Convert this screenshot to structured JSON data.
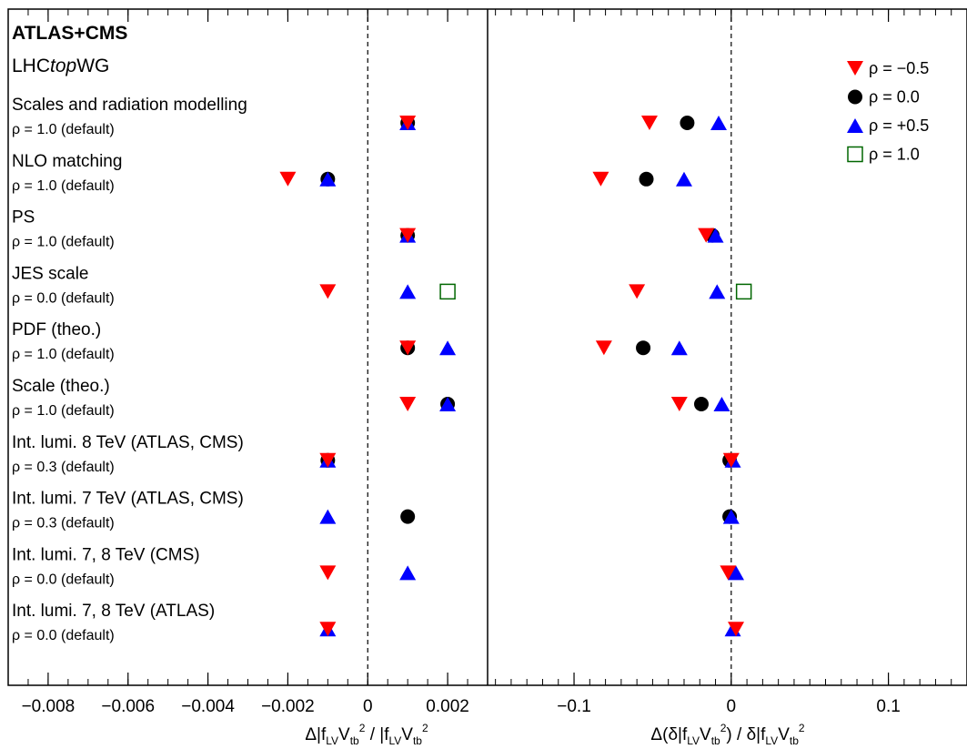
{
  "chart_data": {
    "type": "scatter",
    "title": "ATLAS+CMS",
    "subtitle_prefix": "LHC",
    "subtitle_italic": "top",
    "subtitle_suffix": "WG",
    "rows": [
      {
        "label": "Scales and radiation modelling",
        "rho_default": "ρ = 1.0 (default)"
      },
      {
        "label": "NLO matching",
        "rho_default": "ρ = 1.0 (default)"
      },
      {
        "label": "PS",
        "rho_default": "ρ = 1.0 (default)"
      },
      {
        "label": "JES scale",
        "rho_default": "ρ = 0.0 (default)"
      },
      {
        "label": "PDF (theo.)",
        "rho_default": "ρ = 1.0 (default)"
      },
      {
        "label": "Scale (theo.)",
        "rho_default": "ρ = 1.0 (default)"
      },
      {
        "label": "Int. lumi. 8 TeV (ATLAS, CMS)",
        "rho_default": "ρ = 0.3 (default)"
      },
      {
        "label": "Int. lumi. 7 TeV (ATLAS, CMS)",
        "rho_default": "ρ = 0.3 (default)"
      },
      {
        "label": "Int. lumi. 7, 8 TeV (CMS)",
        "rho_default": "ρ = 0.0 (default)"
      },
      {
        "label": "Int. lumi. 7, 8 TeV (ATLAS)",
        "rho_default": "ρ = 0.0 (default)"
      }
    ],
    "series": [
      {
        "name": "ρ = −0.5",
        "marker": "triangle-down",
        "color": "#ff0000",
        "left": [
          0.001,
          -0.002,
          0.001,
          -0.001,
          0.001,
          0.001,
          -0.001,
          null,
          -0.001,
          -0.001
        ],
        "right": [
          -0.052,
          -0.083,
          -0.016,
          -0.06,
          -0.081,
          -0.033,
          0.0,
          null,
          -0.002,
          0.003
        ]
      },
      {
        "name": "ρ = 0.0",
        "marker": "circle",
        "color": "#000000",
        "left": [
          0.001,
          -0.001,
          0.001,
          null,
          0.001,
          0.002,
          -0.001,
          0.001,
          null,
          null
        ],
        "right": [
          -0.028,
          -0.054,
          -0.012,
          null,
          -0.056,
          -0.019,
          -0.001,
          -0.001,
          null,
          null
        ]
      },
      {
        "name": "ρ = +0.5",
        "marker": "triangle-up",
        "color": "#0000ff",
        "left": [
          0.001,
          -0.001,
          0.001,
          0.001,
          0.002,
          0.002,
          -0.001,
          -0.001,
          0.001,
          -0.001
        ],
        "right": [
          -0.008,
          -0.03,
          -0.01,
          -0.009,
          -0.033,
          -0.006,
          0.001,
          0.0,
          0.003,
          0.001
        ]
      },
      {
        "name": "ρ = 1.0",
        "marker": "square-open",
        "color": "#006600",
        "left": [
          null,
          null,
          null,
          0.002,
          null,
          null,
          null,
          null,
          null,
          null
        ],
        "right": [
          null,
          null,
          null,
          0.008,
          null,
          null,
          null,
          null,
          null,
          null
        ]
      }
    ],
    "left_axis": {
      "xlabel": {
        "pre": "Δ|f",
        "sub1": "LV",
        "mid": "V",
        "sub2": "tb",
        "sup": "2",
        "post": " / |f",
        "sub3": "LV",
        "mid2": "V",
        "sub4": "tb",
        "sup2": "2",
        "tail": ""
      },
      "xlim": [
        -0.009,
        0.003
      ],
      "ticks": [
        -0.008,
        -0.006,
        -0.004,
        -0.002,
        0,
        0.002
      ],
      "tick_labels": [
        "−0.008",
        "−0.006",
        "−0.004",
        "−0.002",
        "0",
        "0.002"
      ]
    },
    "right_axis": {
      "xlabel": {
        "pre": "Δ(δ|f",
        "sub1": "LV",
        "mid": "V",
        "sub2": "tb",
        "sup": "2",
        "post": ") / δ|f",
        "sub3": "LV",
        "mid2": "V",
        "sub4": "tb",
        "sup2": "2",
        "tail": ""
      },
      "xlim": [
        -0.155,
        0.15
      ],
      "ticks": [
        -0.1,
        0,
        0.1
      ],
      "tick_labels": [
        "−0.1",
        "0",
        "0.1"
      ]
    },
    "legend_placement": "top-right",
    "reference_lines": "dashed vertical line at x = 0 in both panels",
    "grid": false
  }
}
